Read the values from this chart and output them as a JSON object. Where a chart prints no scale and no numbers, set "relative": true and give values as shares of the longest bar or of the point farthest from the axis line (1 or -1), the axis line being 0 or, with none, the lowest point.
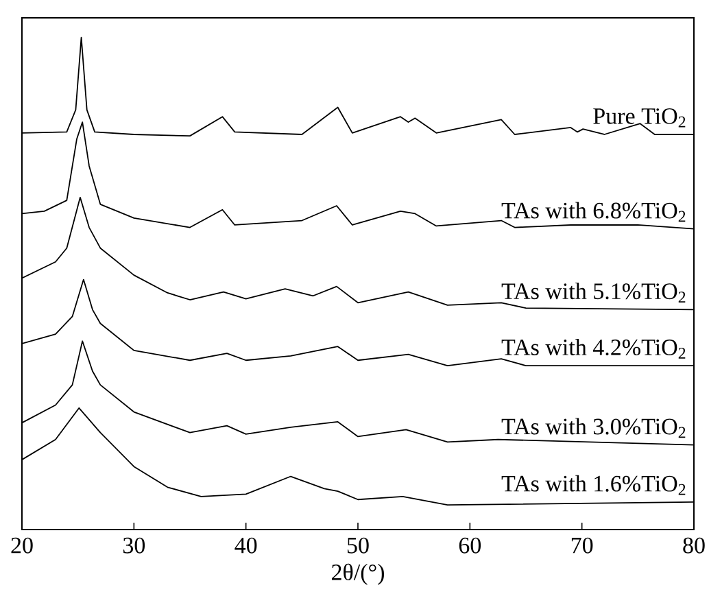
{
  "chart_data": {
    "type": "line",
    "relative": true,
    "xlabel": "2θ/(°)",
    "xlim": [
      20,
      80
    ],
    "xticks": [
      20,
      30,
      40,
      50,
      60,
      70,
      80
    ],
    "tick_labels": "x",
    "grid": false,
    "legend": false,
    "marker": "none",
    "line_style": "solid",
    "series": [
      {
        "name": "Pure TiO$_{2}$",
        "color": "#000000",
        "x": [
          20,
          24,
          24.8,
          25.3,
          25.8,
          26.5,
          30,
          35,
          37.9,
          39,
          45,
          48.2,
          49.5,
          53.8,
          54.5,
          55.1,
          57,
          62.8,
          64,
          69,
          69.6,
          70.1,
          72,
          75.2,
          76.5,
          80
        ],
        "values": [
          0.806,
          0.808,
          0.853,
          1.0,
          0.853,
          0.808,
          0.803,
          0.8,
          0.839,
          0.808,
          0.803,
          0.858,
          0.806,
          0.839,
          0.828,
          0.836,
          0.806,
          0.833,
          0.803,
          0.817,
          0.808,
          0.814,
          0.803,
          0.825,
          0.803,
          0.803
        ]
      },
      {
        "name": "TAs with 6.8%TiO$_{2}$",
        "color": "#000000",
        "x": [
          20,
          22,
          24,
          24.9,
          25.4,
          26,
          27,
          30,
          35,
          37.9,
          39,
          45,
          48.1,
          49.5,
          53.8,
          55.1,
          57,
          62.8,
          64,
          69,
          75,
          80
        ],
        "values": [
          0.642,
          0.647,
          0.669,
          0.794,
          0.828,
          0.739,
          0.661,
          0.633,
          0.614,
          0.65,
          0.619,
          0.628,
          0.658,
          0.619,
          0.647,
          0.642,
          0.617,
          0.628,
          0.614,
          0.619,
          0.619,
          0.611
        ]
      },
      {
        "name": "TAs with 5.1%TiO$_{2}$",
        "color": "#000000",
        "x": [
          20,
          23,
          24,
          25.2,
          26,
          27,
          30,
          33,
          35,
          38,
          40,
          43.5,
          46,
          48.1,
          50,
          54.5,
          58,
          62.8,
          65,
          80
        ],
        "values": [
          0.511,
          0.544,
          0.572,
          0.675,
          0.614,
          0.572,
          0.517,
          0.481,
          0.467,
          0.483,
          0.469,
          0.489,
          0.475,
          0.494,
          0.461,
          0.483,
          0.456,
          0.461,
          0.45,
          0.447
        ]
      },
      {
        "name": "TAs with 4.2%TiO$_{2}$",
        "color": "#000000",
        "x": [
          20,
          23,
          24.5,
          25.5,
          26.3,
          27,
          30,
          35,
          38.3,
          40,
          44,
          48.2,
          50,
          54.5,
          58,
          62.8,
          65,
          80
        ],
        "values": [
          0.378,
          0.397,
          0.433,
          0.508,
          0.447,
          0.419,
          0.364,
          0.344,
          0.358,
          0.344,
          0.353,
          0.372,
          0.344,
          0.356,
          0.333,
          0.347,
          0.333,
          0.333
        ]
      },
      {
        "name": "TAs with 3.0%TiO$_{2}$",
        "color": "#000000",
        "x": [
          20,
          23,
          24.5,
          25.4,
          26.3,
          27,
          30,
          35,
          38.3,
          40,
          44,
          48.2,
          50,
          54.3,
          58,
          62.5,
          80
        ],
        "values": [
          0.217,
          0.253,
          0.294,
          0.383,
          0.322,
          0.294,
          0.239,
          0.197,
          0.211,
          0.194,
          0.208,
          0.219,
          0.189,
          0.203,
          0.178,
          0.183,
          0.172
        ]
      },
      {
        "name": "TAs with 1.6%TiO$_{2}$",
        "color": "#000000",
        "x": [
          20,
          23,
          25.1,
          27,
          30,
          33,
          36,
          40,
          44,
          47,
          48.2,
          50,
          54,
          58,
          80
        ],
        "values": [
          0.142,
          0.183,
          0.247,
          0.197,
          0.128,
          0.086,
          0.067,
          0.072,
          0.108,
          0.083,
          0.078,
          0.061,
          0.067,
          0.05,
          0.056
        ]
      }
    ]
  }
}
